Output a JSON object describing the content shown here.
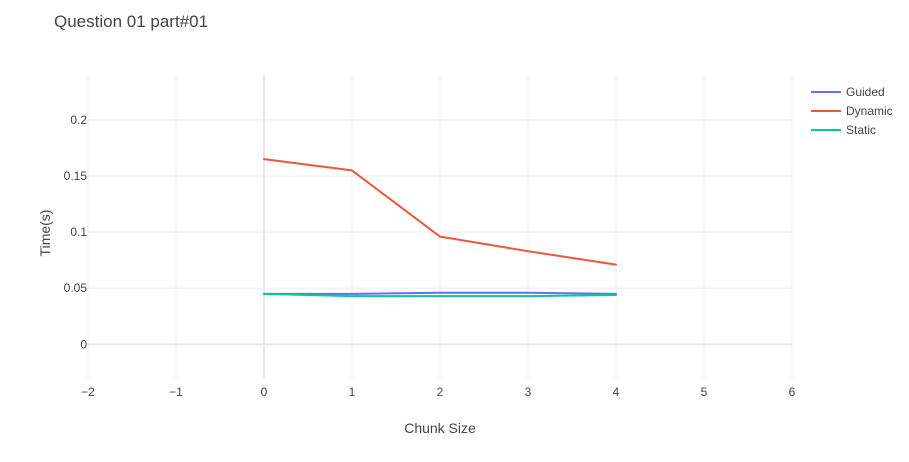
{
  "chart_data": {
    "type": "line",
    "title": "Question 01 part#01",
    "xlabel": "Chunk Size",
    "ylabel": "Time(s)",
    "xlim": [
      -2,
      6
    ],
    "ylim": [
      -0.03,
      0.24
    ],
    "x_ticks": [
      -2,
      -1,
      0,
      1,
      2,
      3,
      4,
      5,
      6
    ],
    "x_tick_labels": [
      "−2",
      "−1",
      "0",
      "1",
      "2",
      "3",
      "4",
      "5",
      "6"
    ],
    "y_ticks": [
      0,
      0.05,
      0.1,
      0.15,
      0.2
    ],
    "y_tick_labels": [
      "0",
      "0.05",
      "0.1",
      "0.15",
      "0.2"
    ],
    "grid": true,
    "legend_position": "top-right",
    "x": [
      0,
      1,
      2,
      3,
      4
    ],
    "series": [
      {
        "name": "Guided",
        "color": "#636efa",
        "values": [
          0.045,
          0.045,
          0.046,
          0.046,
          0.045
        ]
      },
      {
        "name": "Dynamic",
        "color": "#ef553b",
        "values": [
          0.165,
          0.155,
          0.096,
          0.083,
          0.071
        ]
      },
      {
        "name": "Static",
        "color": "#00cc96",
        "values": [
          0.045,
          0.043,
          0.043,
          0.043,
          0.044
        ]
      }
    ]
  }
}
